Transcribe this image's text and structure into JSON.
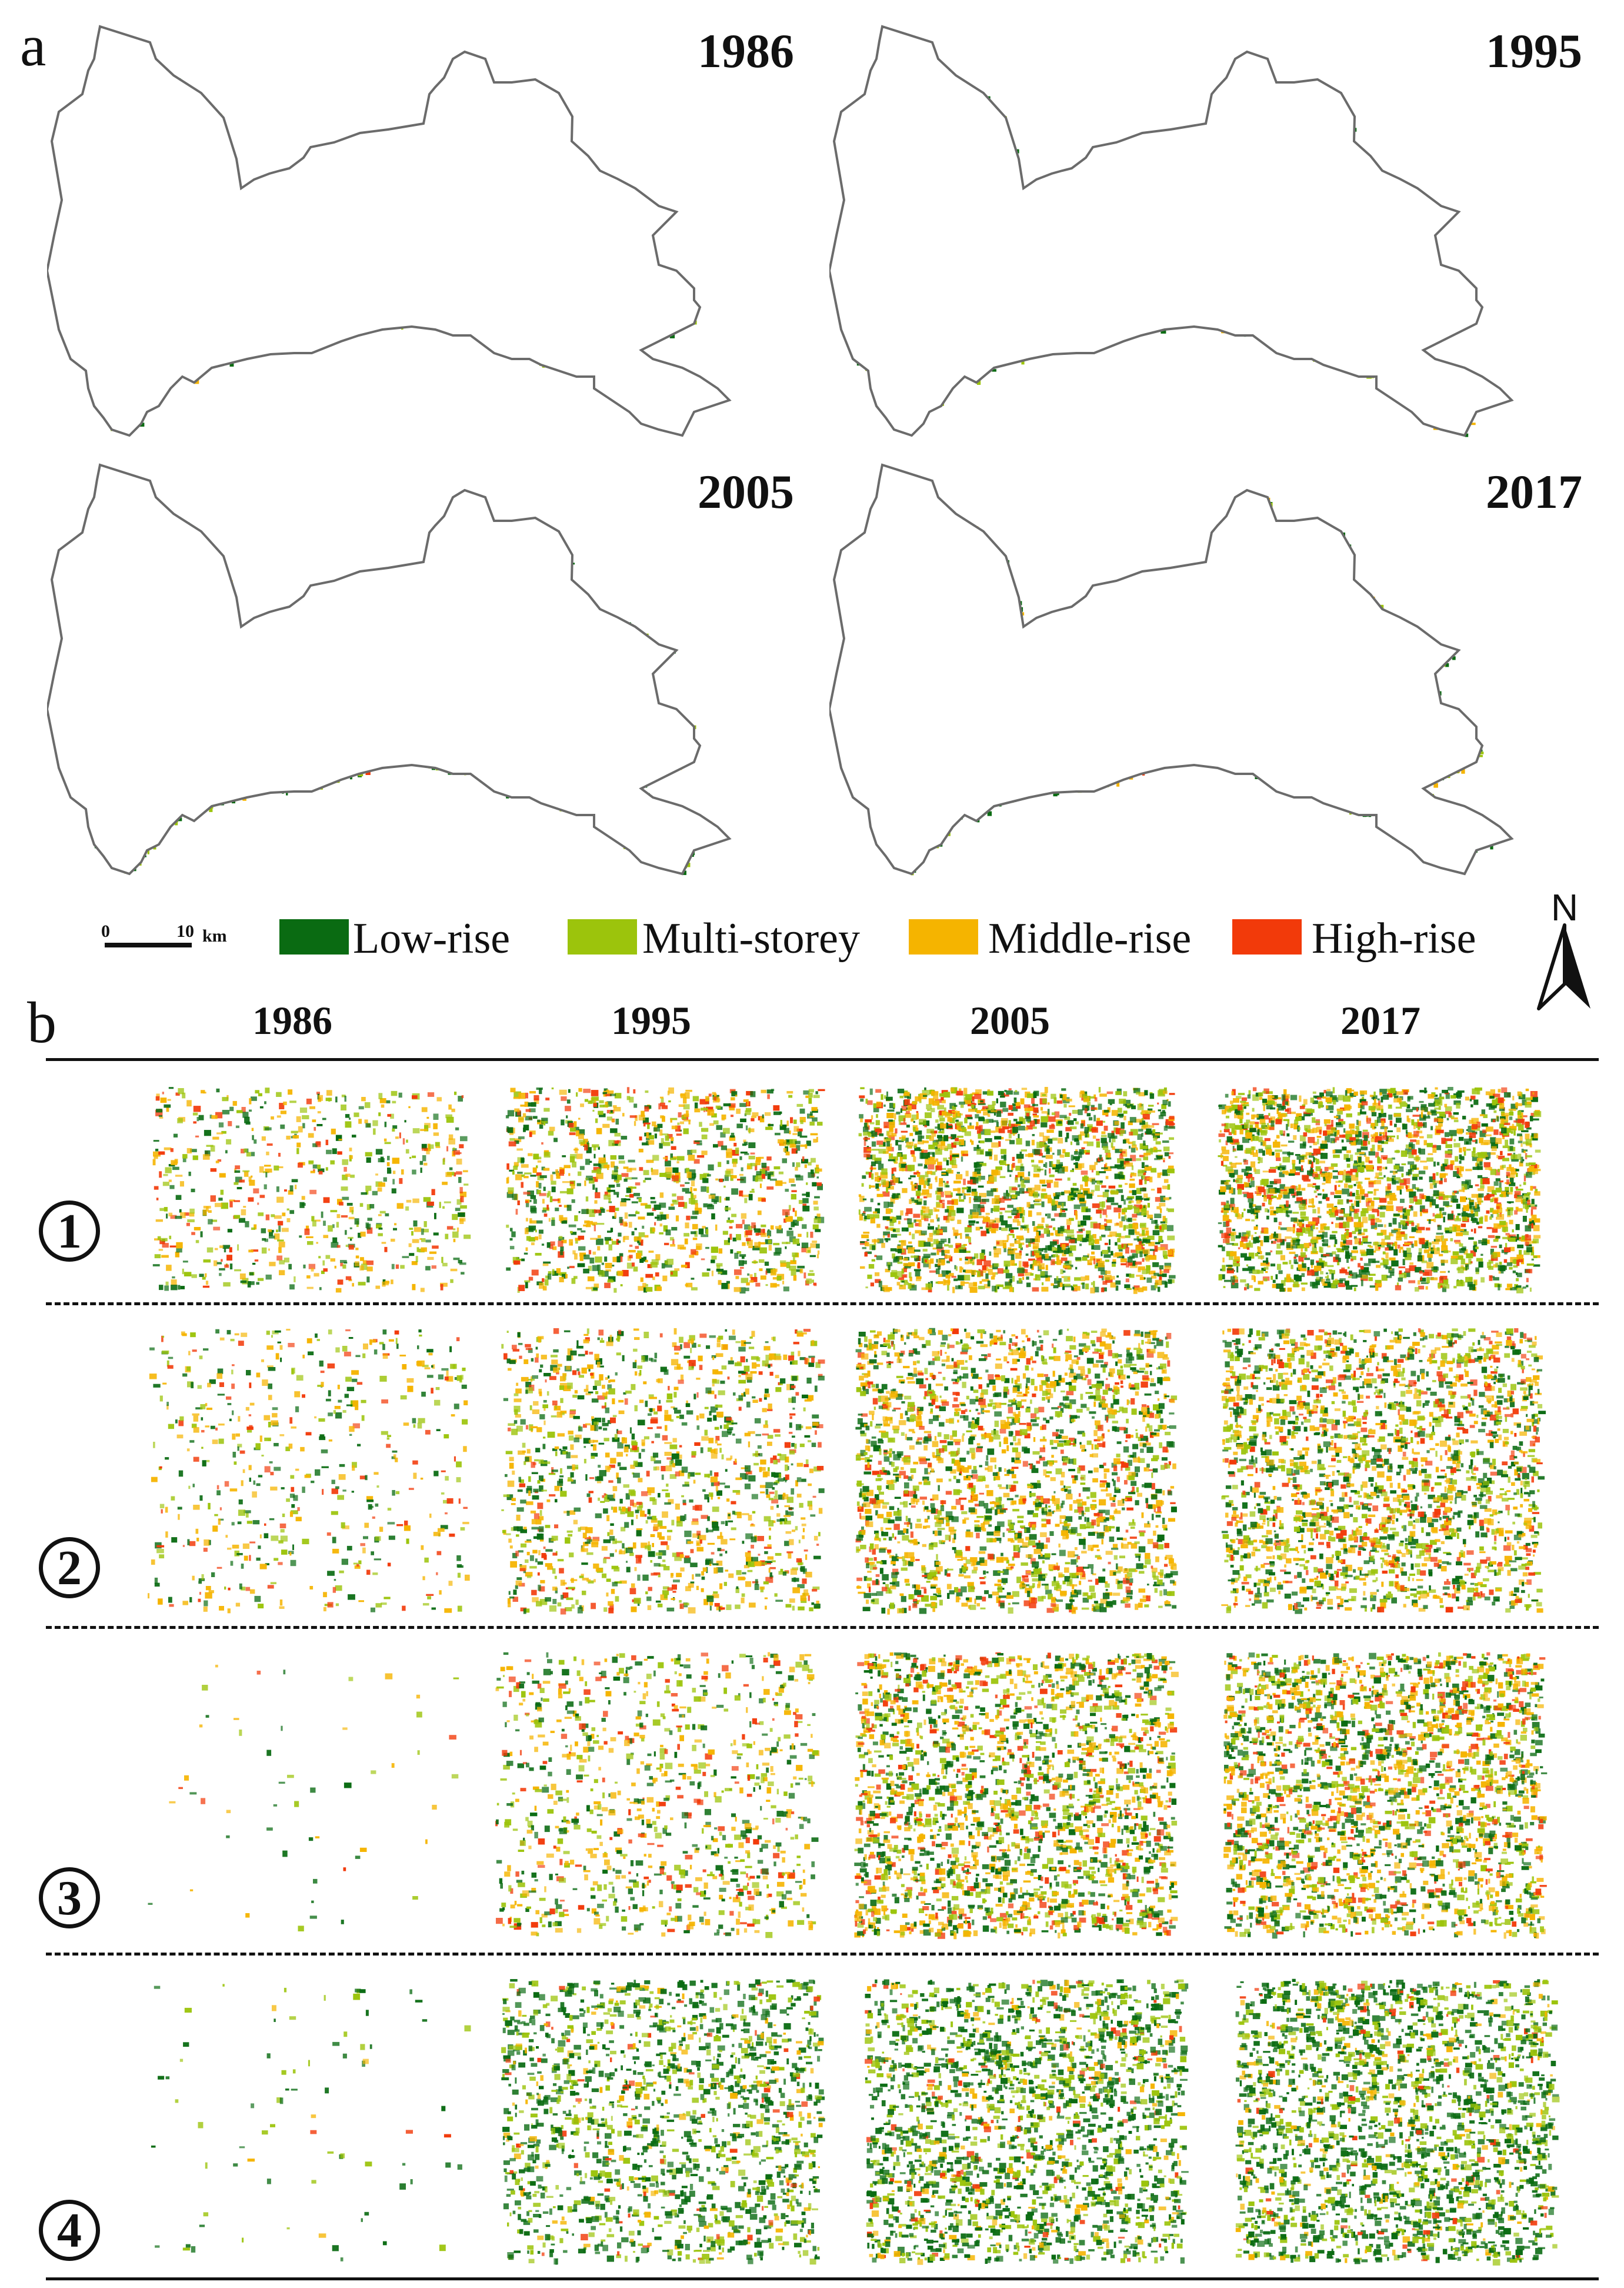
{
  "panel_a": {
    "letter": "a",
    "maps": [
      {
        "year": "1986",
        "density": 0.15
      },
      {
        "year": "1995",
        "density": 0.45
      },
      {
        "year": "2005",
        "density": 0.8
      },
      {
        "year": "2017",
        "density": 0.85
      }
    ]
  },
  "legend": {
    "scale": {
      "start": "0",
      "end": "10",
      "unit": "km"
    },
    "items": [
      {
        "label": "Low-rise",
        "color": "#0a6b12"
      },
      {
        "label": "Multi-storey",
        "color": "#9cc40c"
      },
      {
        "label": "Middle-rise",
        "color": "#f5b400"
      },
      {
        "label": "High-rise",
        "color": "#f23a0a"
      }
    ],
    "north": "N"
  },
  "panel_b": {
    "letter": "b",
    "years": [
      "1986",
      "1995",
      "2005",
      "2017"
    ],
    "regions": [
      {
        "label": "1",
        "densities": [
          0.25,
          0.45,
          0.8,
          0.85
        ]
      },
      {
        "label": "2",
        "densities": [
          0.2,
          0.5,
          0.8,
          0.85
        ]
      },
      {
        "label": "3",
        "densities": [
          0.02,
          0.35,
          0.85,
          0.9
        ]
      },
      {
        "label": "4",
        "densities": [
          0.03,
          0.6,
          0.8,
          0.85
        ]
      }
    ]
  }
}
